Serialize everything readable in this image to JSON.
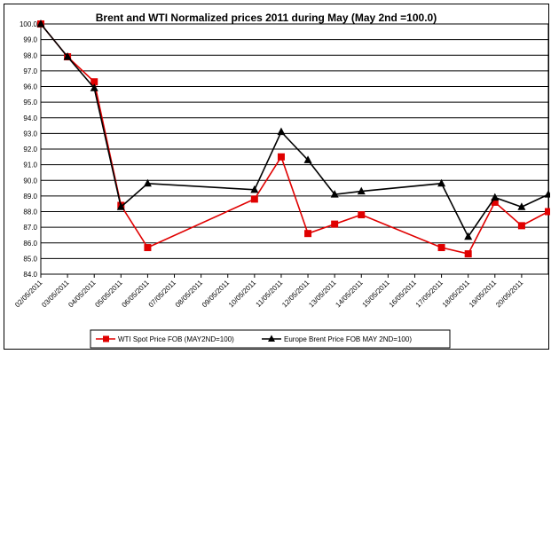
{
  "chart_data": {
    "type": "line",
    "title": "Brent and WTI Normalized prices 2011 during May  (May 2nd =100.0)",
    "xlabel": "",
    "ylabel": "",
    "categories": [
      "02/05/2011",
      "03/05/2011",
      "04/05/2011",
      "05/05/2011",
      "06/05/2011",
      "07/05/2011",
      "08/05/2011",
      "09/05/2011",
      "10/05/2011",
      "11/05/2011",
      "12/05/2011",
      "13/05/2011",
      "14/05/2011",
      "15/05/2011",
      "16/05/2011",
      "17/05/2011",
      "18/05/2011",
      "19/05/2011",
      "20/05/2011"
    ],
    "y_ticks": [
      "84.0",
      "85.0",
      "86.0",
      "87.0",
      "88.0",
      "89.0",
      "90.0",
      "91.0",
      "92.0",
      "93.0",
      "94.0",
      "95.0",
      "96.0",
      "97.0",
      "98.0",
      "99.0",
      "100.0"
    ],
    "ylim": [
      84.0,
      100.0
    ],
    "grid": "horizontal",
    "legend_position": "bottom",
    "series": [
      {
        "name": "WTI Spot Price FOB (MAY2ND=100)",
        "color": "#e00000",
        "marker": "square",
        "points": [
          [
            0,
            100.0
          ],
          [
            1,
            97.9
          ],
          [
            2,
            96.3
          ],
          [
            3,
            88.4
          ],
          [
            4,
            85.7
          ],
          [
            8,
            88.8
          ],
          [
            9,
            91.5
          ],
          [
            10,
            86.6
          ],
          [
            11,
            87.2
          ],
          [
            12,
            87.8
          ],
          [
            15,
            85.7
          ],
          [
            16,
            85.3
          ],
          [
            17,
            88.6
          ],
          [
            18,
            87.1
          ],
          [
            19,
            88.0
          ]
        ]
      },
      {
        "name": "Europe Brent Price FOB MAY 2ND=100)",
        "color": "#000000",
        "marker": "triangle",
        "points": [
          [
            0,
            100.0
          ],
          [
            1,
            97.9
          ],
          [
            2,
            95.9
          ],
          [
            3,
            88.3
          ],
          [
            4,
            89.8
          ],
          [
            8,
            89.4
          ],
          [
            9,
            93.1
          ],
          [
            10,
            91.3
          ],
          [
            11,
            89.1
          ],
          [
            12,
            89.3
          ],
          [
            15,
            89.8
          ],
          [
            16,
            86.4
          ],
          [
            17,
            88.9
          ],
          [
            18,
            88.3
          ],
          [
            19,
            89.1
          ]
        ]
      }
    ]
  }
}
